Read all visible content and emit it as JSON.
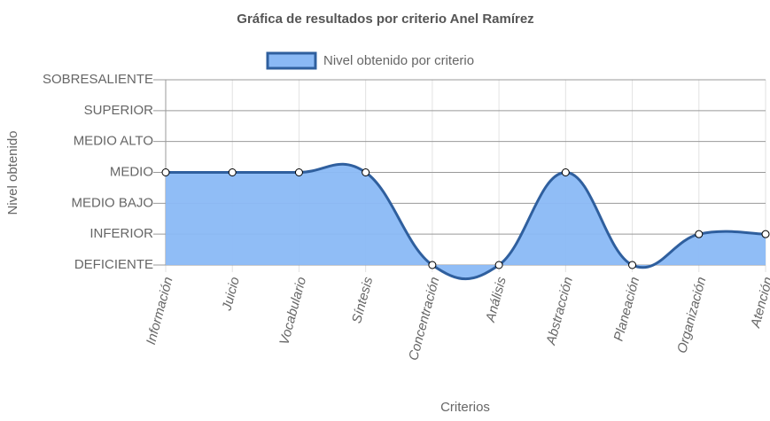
{
  "chart_data": {
    "type": "area-line",
    "title": "Gráfica de resultados por criterio Anel Ramírez",
    "x_label": "Criterios",
    "y_label": "Nivel obtenido",
    "categories": [
      "Información",
      "Juicio",
      "Vocabulario",
      "Síntesis",
      "Concentración",
      "Análisis",
      "Abstracción",
      "Planeación",
      "Organización",
      "Atención"
    ],
    "series": [
      {
        "name": "Nivel obtenido por criterio",
        "color": "#2f5f9e",
        "fill": "#8ab9f5",
        "values": [
          3,
          3,
          3,
          3,
          0,
          0,
          3,
          0,
          1,
          1
        ]
      }
    ],
    "ylim": [
      0,
      6
    ],
    "yticks": [
      {
        "value": 0,
        "label": "DEFICIENTE"
      },
      {
        "value": 1,
        "label": "INFERIOR"
      },
      {
        "value": 2,
        "label": "MEDIO BAJO"
      },
      {
        "value": 3,
        "label": "MEDIO"
      },
      {
        "value": 4,
        "label": "MEDIO ALTO"
      },
      {
        "value": 5,
        "label": "SUPERIOR"
      },
      {
        "value": 6,
        "label": "SOBRESALIENTE"
      }
    ],
    "grid": true,
    "legend": "top"
  }
}
